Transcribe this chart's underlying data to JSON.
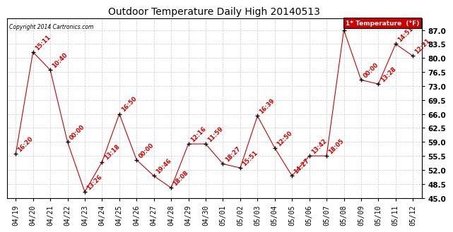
{
  "title": "Outdoor Temperature Daily High 20140513",
  "copyright": "Copyright 2014 Cartronics.com",
  "legend_label": "1* Temperature  (°F)",
  "dates": [
    "04/19",
    "04/20",
    "04/21",
    "04/22",
    "04/23",
    "04/24",
    "04/25",
    "04/26",
    "04/27",
    "04/28",
    "04/29",
    "04/30",
    "05/01",
    "05/02",
    "05/03",
    "05/04",
    "05/05",
    "05/06",
    "05/07",
    "05/08",
    "05/09",
    "05/10",
    "05/11",
    "05/12"
  ],
  "values": [
    56.0,
    81.5,
    77.0,
    59.0,
    46.5,
    54.0,
    66.0,
    54.5,
    50.5,
    47.5,
    58.5,
    58.5,
    53.5,
    52.5,
    65.5,
    57.5,
    50.5,
    55.5,
    55.5,
    87.0,
    74.5,
    73.5,
    83.5,
    80.5
  ],
  "labels": [
    "16:20",
    "15:11",
    "10:40",
    "00:00",
    "13:26",
    "13:18",
    "16:50",
    "00:00",
    "19:46",
    "18:08",
    "12:16",
    "11:59",
    "18:27",
    "15:51",
    "16:39",
    "12:50",
    "14:27",
    "13:42",
    "18:05",
    "",
    "00:00",
    "13:28",
    "14:51",
    "12:21"
  ],
  "line_color": "#cc0000",
  "marker_color": "#000000",
  "bg_color": "#ffffff",
  "grid_color": "#cccccc",
  "label_color": "#cc0000",
  "ylim": [
    45.0,
    90.0
  ],
  "yticks": [
    45.0,
    48.5,
    52.0,
    55.5,
    59.0,
    62.5,
    66.0,
    69.5,
    73.0,
    76.5,
    80.0,
    83.5,
    87.0
  ],
  "ytick_labels": [
    "45.0",
    "48.5",
    "52.0",
    "55.5",
    "59.0",
    "62.5",
    "66.0",
    "69.5",
    "73.0",
    "76.5",
    "80.0",
    "83.5",
    "87.0"
  ],
  "legend_bg": "#cc0000",
  "legend_text_color": "#ffffff",
  "title_fontsize": 10,
  "tick_fontsize": 7,
  "label_fontsize": 6
}
